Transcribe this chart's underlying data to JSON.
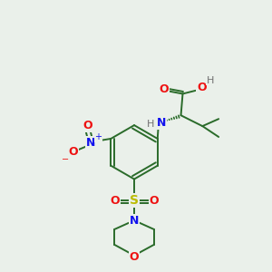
{
  "bg_color": "#eaf0ea",
  "bond_color": "#2a6b2a",
  "atom_colors": {
    "O": "#ee1111",
    "N": "#1111ee",
    "S": "#bbbb00",
    "H": "#707070",
    "C": "#2a6b2a"
  },
  "figsize": [
    3.0,
    3.0
  ],
  "dpi": 100
}
